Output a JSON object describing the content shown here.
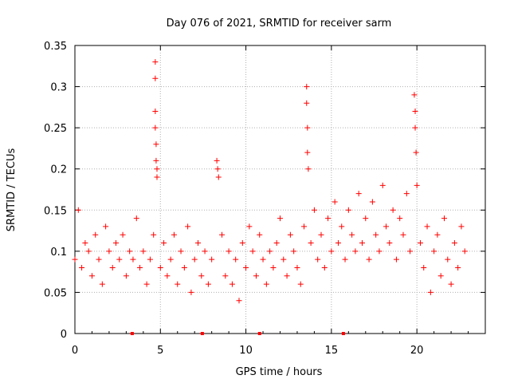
{
  "chart_data": {
    "type": "scatter",
    "title": "Day 076 of 2021, SRMTID for receiver sarm",
    "xlabel": "GPS time / hours",
    "ylabel": "SRMTID / TECUs",
    "xlim": [
      0,
      24
    ],
    "ylim": [
      0,
      0.35
    ],
    "grid": true,
    "x_ticks": [
      0,
      5,
      10,
      15,
      20
    ],
    "x_tick_labels": [
      "0",
      "5",
      "10",
      "15",
      "20"
    ],
    "y_ticks": [
      0,
      0.05,
      0.1,
      0.15,
      0.2,
      0.25,
      0.3,
      0.35
    ],
    "y_tick_labels": [
      "0",
      "0.05",
      "0.1",
      "0.15",
      "0.2",
      "0.25",
      "0.3",
      "0.35"
    ],
    "marker": "+",
    "color": "#ff0000",
    "series": [
      {
        "name": "SRMTID",
        "x": [
          0.0,
          0.2,
          0.4,
          0.6,
          0.8,
          1.0,
          1.2,
          1.4,
          1.6,
          1.8,
          2.0,
          2.2,
          2.4,
          2.6,
          2.8,
          3.0,
          3.2,
          3.4,
          3.6,
          3.8,
          4.0,
          4.2,
          4.4,
          4.6,
          4.7,
          4.7,
          4.7,
          4.7,
          4.75,
          4.75,
          4.8,
          4.8,
          5.0,
          5.2,
          5.4,
          5.6,
          5.8,
          6.0,
          6.2,
          6.4,
          6.6,
          6.8,
          7.0,
          7.2,
          7.4,
          7.6,
          7.8,
          8.0,
          8.3,
          8.35,
          8.4,
          8.6,
          8.8,
          9.0,
          9.2,
          9.4,
          9.6,
          9.8,
          10.0,
          10.2,
          10.4,
          10.6,
          10.8,
          11.0,
          11.2,
          11.4,
          11.6,
          11.8,
          12.0,
          12.2,
          12.4,
          12.6,
          12.8,
          13.0,
          13.2,
          13.4,
          13.55,
          13.55,
          13.6,
          13.6,
          13.65,
          13.8,
          14.0,
          14.2,
          14.4,
          14.6,
          14.8,
          15.0,
          15.2,
          15.4,
          15.6,
          15.8,
          16.0,
          16.2,
          16.4,
          16.6,
          16.8,
          17.0,
          17.2,
          17.4,
          17.6,
          17.8,
          18.0,
          18.2,
          18.4,
          18.6,
          18.8,
          19.0,
          19.2,
          19.4,
          19.6,
          19.85,
          19.9,
          19.9,
          19.95,
          20.0,
          20.2,
          20.4,
          20.6,
          20.8,
          21.0,
          21.2,
          21.4,
          21.6,
          21.8,
          22.0,
          22.2,
          22.4,
          22.6,
          22.8
        ],
        "y": [
          0.09,
          0.15,
          0.08,
          0.11,
          0.1,
          0.07,
          0.12,
          0.09,
          0.06,
          0.13,
          0.1,
          0.08,
          0.11,
          0.09,
          0.12,
          0.07,
          0.1,
          0.09,
          0.14,
          0.08,
          0.1,
          0.06,
          0.09,
          0.12,
          0.33,
          0.31,
          0.27,
          0.25,
          0.23,
          0.21,
          0.2,
          0.19,
          0.08,
          0.11,
          0.07,
          0.09,
          0.12,
          0.06,
          0.1,
          0.08,
          0.13,
          0.05,
          0.09,
          0.11,
          0.07,
          0.1,
          0.06,
          0.09,
          0.21,
          0.2,
          0.19,
          0.12,
          0.07,
          0.1,
          0.06,
          0.09,
          0.04,
          0.11,
          0.08,
          0.13,
          0.1,
          0.07,
          0.12,
          0.09,
          0.06,
          0.1,
          0.08,
          0.11,
          0.14,
          0.09,
          0.07,
          0.12,
          0.1,
          0.08,
          0.06,
          0.13,
          0.3,
          0.28,
          0.25,
          0.22,
          0.2,
          0.11,
          0.15,
          0.09,
          0.12,
          0.08,
          0.14,
          0.1,
          0.16,
          0.11,
          0.13,
          0.09,
          0.15,
          0.12,
          0.1,
          0.17,
          0.11,
          0.14,
          0.09,
          0.16,
          0.12,
          0.1,
          0.18,
          0.13,
          0.11,
          0.15,
          0.09,
          0.14,
          0.12,
          0.17,
          0.1,
          0.29,
          0.27,
          0.25,
          0.22,
          0.18,
          0.11,
          0.08,
          0.13,
          0.05,
          0.1,
          0.12,
          0.07,
          0.14,
          0.09,
          0.06,
          0.11,
          0.08,
          0.13,
          0.1
        ]
      }
    ],
    "data_gap_markers_x": [
      3.35,
      7.45,
      10.8,
      15.7
    ]
  }
}
